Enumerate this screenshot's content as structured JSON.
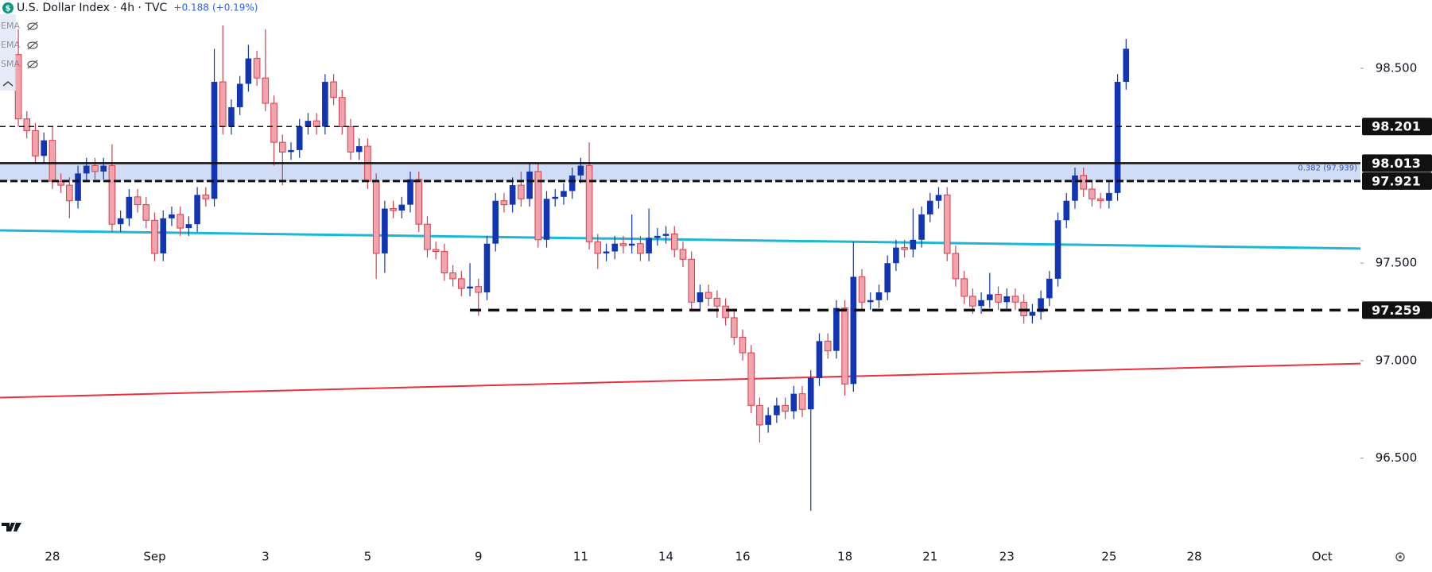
{
  "header": {
    "title": "U.S. Dollar Index · 4h · TVC",
    "change": "+0.188",
    "change_pct": "(+0.19%)",
    "indicators": [
      "EMA",
      "EMA",
      "SMA"
    ]
  },
  "chart_data": {
    "type": "candlestick",
    "open": [
      98.57,
      98.24,
      98.18,
      98.05,
      98.13,
      97.92,
      97.9,
      97.82,
      97.96,
      98.0,
      97.97,
      98.0,
      97.7,
      97.73,
      97.84,
      97.8,
      97.72,
      97.55,
      97.73,
      97.75,
      97.68,
      97.7,
      97.85,
      97.83,
      98.43,
      98.2,
      98.3,
      98.42,
      98.55,
      98.45,
      98.32,
      98.12,
      98.07,
      98.08,
      98.2,
      98.23,
      98.2,
      98.43,
      98.35,
      98.2,
      98.07,
      98.1,
      97.92,
      97.55,
      97.78,
      97.77,
      97.8,
      97.93,
      97.7,
      97.57,
      97.56,
      97.45,
      97.42,
      97.37,
      97.38,
      97.35,
      97.6,
      97.82,
      97.8,
      97.9,
      97.83,
      97.97,
      97.62,
      97.83,
      97.84,
      97.87,
      97.95,
      98.0,
      97.61,
      97.55,
      97.56,
      97.6,
      97.59,
      97.6,
      97.55,
      97.63,
      97.64,
      97.65,
      97.57,
      97.52,
      97.3,
      97.35,
      97.32,
      97.28,
      97.22,
      97.12,
      97.04,
      96.77,
      96.67,
      96.72,
      96.77,
      96.74,
      96.83,
      96.75,
      96.91,
      97.1,
      97.05,
      97.27,
      96.88,
      97.43,
      97.3,
      97.31,
      97.35,
      97.5,
      97.58,
      97.57,
      97.62,
      97.75,
      97.82,
      97.85,
      97.55,
      97.42,
      97.33,
      97.28,
      97.31,
      97.34,
      97.3,
      97.33,
      97.3,
      97.23,
      97.25,
      97.32,
      97.42,
      97.72,
      97.82,
      97.95,
      97.88,
      97.83,
      97.82,
      97.86,
      98.43
    ],
    "high": [
      98.7,
      98.28,
      98.22,
      98.17,
      98.2,
      97.96,
      97.94,
      98.0,
      98.04,
      98.04,
      98.04,
      98.11,
      97.77,
      97.88,
      97.88,
      97.84,
      97.76,
      97.77,
      97.79,
      97.79,
      97.74,
      97.89,
      97.89,
      98.6,
      98.72,
      98.34,
      98.46,
      98.62,
      98.59,
      98.7,
      98.36,
      98.16,
      98.12,
      98.24,
      98.27,
      98.27,
      98.47,
      98.47,
      98.39,
      98.24,
      98.14,
      98.14,
      97.96,
      97.82,
      97.82,
      97.84,
      97.97,
      97.97,
      97.74,
      97.61,
      97.6,
      97.49,
      97.46,
      97.5,
      97.42,
      97.64,
      97.86,
      97.86,
      97.94,
      97.97,
      98.01,
      98.01,
      97.87,
      97.88,
      97.91,
      97.99,
      98.04,
      98.12,
      97.65,
      97.6,
      97.64,
      97.64,
      97.75,
      97.64,
      97.78,
      97.68,
      97.69,
      97.69,
      97.61,
      97.56,
      97.39,
      97.39,
      97.36,
      97.32,
      97.26,
      97.16,
      97.08,
      96.81,
      96.76,
      96.81,
      96.81,
      96.87,
      96.87,
      96.95,
      97.14,
      97.14,
      97.31,
      97.31,
      97.61,
      97.47,
      97.35,
      97.39,
      97.54,
      97.62,
      97.62,
      97.78,
      97.79,
      97.86,
      97.89,
      97.89,
      97.59,
      97.46,
      97.37,
      97.35,
      97.45,
      97.38,
      97.37,
      97.37,
      97.34,
      97.29,
      97.36,
      97.46,
      97.76,
      97.86,
      97.99,
      97.99,
      97.92,
      97.86,
      97.92,
      98.47,
      98.65
    ],
    "low": [
      98.2,
      98.14,
      98.01,
      98.01,
      97.88,
      97.86,
      97.73,
      97.78,
      97.92,
      97.93,
      97.93,
      97.66,
      97.66,
      97.69,
      97.76,
      97.68,
      97.51,
      97.51,
      97.69,
      97.64,
      97.64,
      97.66,
      97.79,
      97.79,
      98.16,
      98.16,
      98.26,
      98.38,
      98.41,
      98.28,
      98.0,
      97.9,
      98.03,
      98.04,
      98.16,
      98.16,
      98.16,
      98.31,
      98.16,
      98.03,
      98.03,
      97.88,
      97.42,
      97.45,
      97.73,
      97.73,
      97.76,
      97.66,
      97.53,
      97.52,
      97.41,
      97.38,
      97.33,
      97.33,
      97.23,
      97.31,
      97.56,
      97.76,
      97.76,
      97.79,
      97.79,
      97.58,
      97.58,
      97.79,
      97.8,
      97.83,
      97.91,
      97.57,
      97.47,
      97.51,
      97.52,
      97.55,
      97.55,
      97.51,
      97.51,
      97.59,
      97.6,
      97.53,
      97.48,
      97.26,
      97.26,
      97.28,
      97.22,
      97.18,
      97.08,
      97.0,
      96.73,
      96.58,
      96.63,
      96.68,
      96.7,
      96.7,
      96.71,
      96.23,
      96.87,
      97.01,
      97.01,
      96.82,
      96.84,
      97.26,
      97.26,
      97.27,
      97.31,
      97.46,
      97.53,
      97.53,
      97.58,
      97.71,
      97.78,
      97.51,
      97.38,
      97.29,
      97.24,
      97.24,
      97.27,
      97.26,
      97.26,
      97.26,
      97.19,
      97.19,
      97.21,
      97.28,
      97.38,
      97.68,
      97.78,
      97.84,
      97.79,
      97.78,
      97.78,
      97.82,
      98.39
    ],
    "close": [
      98.24,
      98.18,
      98.05,
      98.13,
      97.92,
      97.9,
      97.82,
      97.96,
      98.0,
      97.97,
      98.0,
      97.7,
      97.73,
      97.84,
      97.8,
      97.72,
      97.55,
      97.73,
      97.75,
      97.68,
      97.7,
      97.85,
      97.83,
      98.43,
      98.2,
      98.3,
      98.42,
      98.55,
      98.45,
      98.32,
      98.12,
      98.07,
      98.08,
      98.2,
      98.23,
      98.2,
      98.43,
      98.35,
      98.2,
      98.07,
      98.1,
      97.92,
      97.55,
      97.78,
      97.77,
      97.8,
      97.93,
      97.7,
      97.57,
      97.56,
      97.45,
      97.42,
      97.37,
      97.38,
      97.35,
      97.6,
      97.82,
      97.8,
      97.9,
      97.83,
      97.97,
      97.62,
      97.83,
      97.84,
      97.87,
      97.95,
      98.0,
      97.61,
      97.55,
      97.56,
      97.6,
      97.59,
      97.6,
      97.55,
      97.63,
      97.64,
      97.65,
      97.57,
      97.52,
      97.3,
      97.35,
      97.32,
      97.28,
      97.22,
      97.12,
      97.04,
      96.77,
      96.67,
      96.72,
      96.77,
      96.74,
      96.83,
      96.75,
      96.91,
      97.1,
      97.05,
      97.27,
      96.88,
      97.43,
      97.3,
      97.31,
      97.35,
      97.5,
      97.58,
      97.57,
      97.62,
      97.75,
      97.82,
      97.85,
      97.55,
      97.42,
      97.33,
      97.28,
      97.31,
      97.34,
      97.3,
      97.33,
      97.3,
      97.23,
      97.25,
      97.32,
      97.42,
      97.72,
      97.82,
      97.95,
      97.88,
      97.83,
      97.82,
      97.86,
      98.43,
      98.6
    ],
    "up_color": "#1235b4",
    "down_color": "#f3a3ab",
    "down_border": "#d2404f",
    "xlim": [
      -2.15,
      157.5
    ],
    "xticks": [
      {
        "value": 4,
        "label": "28"
      },
      {
        "value": 16,
        "label": "Sep"
      },
      {
        "value": 29,
        "label": "3"
      },
      {
        "value": 41,
        "label": "5"
      },
      {
        "value": 54,
        "label": "9"
      },
      {
        "value": 66,
        "label": "11"
      },
      {
        "value": 76,
        "label": "14"
      },
      {
        "value": 85,
        "label": "16"
      },
      {
        "value": 97,
        "label": "18"
      },
      {
        "value": 107,
        "label": "21"
      },
      {
        "value": 116,
        "label": "23"
      },
      {
        "value": 128,
        "label": "25"
      },
      {
        "value": 138,
        "label": "28"
      },
      {
        "value": 153,
        "label": "Oct"
      }
    ],
    "ylim": [
      96.05,
      98.85
    ],
    "yticks": [
      {
        "value": 96.5,
        "label": "96.500"
      },
      {
        "value": 97,
        "label": "97.000"
      },
      {
        "value": 97.5,
        "label": "97.500"
      },
      {
        "value": 98.5,
        "label": "98.500"
      }
    ],
    "levels": [
      {
        "value": 98.201,
        "style": "dashed"
      },
      {
        "value": 98.013,
        "style": "solid"
      },
      {
        "value": 97.921,
        "style": "heavy-dashed"
      },
      {
        "value": 97.259,
        "style": "wide-dashed",
        "x_start": 53
      }
    ],
    "zone": {
      "from": 97.921,
      "to": 98.013,
      "color": "#c9d6f5",
      "label": "0.382 (97.939)"
    },
    "trendlines": [
      {
        "color": "#1bb8d6",
        "x": [
          -2.15,
          157.5
        ],
        "values": [
          97.668,
          97.575
        ]
      },
      {
        "color": "#e8303e",
        "x": [
          -2.15,
          157.5
        ],
        "values": [
          96.81,
          96.985
        ]
      }
    ]
  }
}
